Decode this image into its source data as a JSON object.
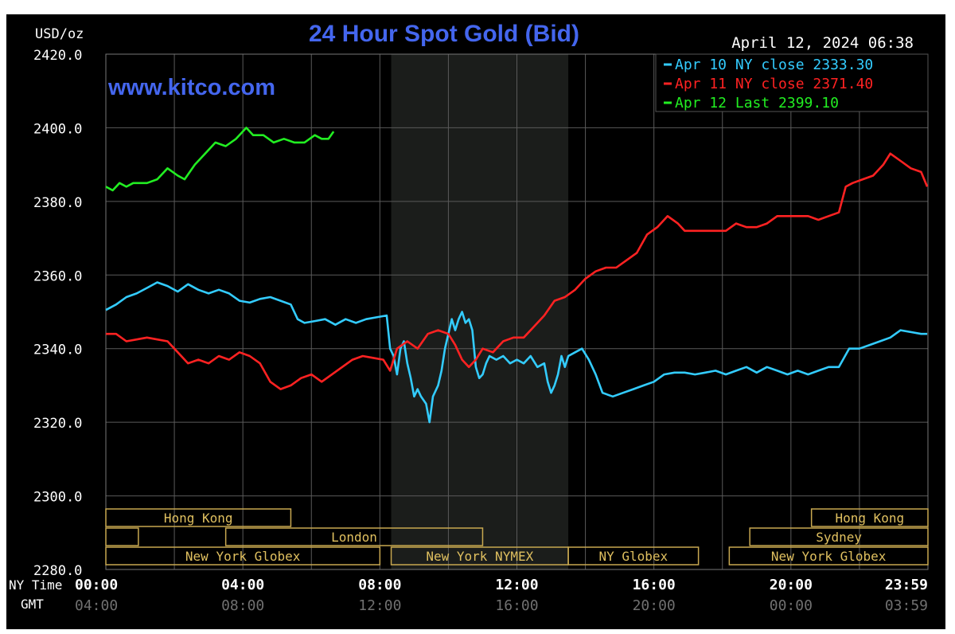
{
  "chart_data": {
    "type": "line",
    "title": "24 Hour Spot Gold (Bid)",
    "website": "www.kitco.com",
    "timestamp": "April 12, 2024 06:38",
    "unit_label": "USD/oz",
    "ylim": [
      2280,
      2420
    ],
    "y_ticks": [
      "2420.0",
      "2400.0",
      "2380.0",
      "2360.0",
      "2340.0",
      "2320.0",
      "2300.0",
      "2280.0"
    ],
    "y_tick_values": [
      2420,
      2400,
      2380,
      2360,
      2340,
      2320,
      2300,
      2280
    ],
    "xlim": [
      0,
      24
    ],
    "x_ticks_ny": [
      "00:00",
      "04:00",
      "08:00",
      "12:00",
      "16:00",
      "20:00",
      "23:59"
    ],
    "x_ticks_gmt": [
      "04:00",
      "08:00",
      "12:00",
      "16:00",
      "20:00",
      "00:00",
      "03:59"
    ],
    "x_tick_hours": [
      0,
      4,
      8,
      12,
      16,
      20,
      23.98
    ],
    "x_row_labels": {
      "ny": "NY Time",
      "gmt": "GMT"
    },
    "grid": true,
    "legend_position": "top-right",
    "legend": [
      {
        "text": "Apr 10 NY close 2333.30",
        "color": "#33ccff"
      },
      {
        "text": "Apr 11 NY close 2371.40",
        "color": "#ff2222"
      },
      {
        "text": "Apr 12 Last 2399.10",
        "color": "#22ee22"
      }
    ],
    "nymex_shade_hours": [
      8.33,
      13.5
    ],
    "sessions": [
      {
        "label": "Hong Kong",
        "start": 0,
        "end": 5.4,
        "row": 0
      },
      {
        "label": "Hong Kong",
        "start": 20.6,
        "end": 24,
        "row": 0
      },
      {
        "label": "",
        "start": 0,
        "end": 0.95,
        "row": 1
      },
      {
        "label": "London",
        "start": 3.5,
        "end": 11.0,
        "row": 1
      },
      {
        "label": "Sydney",
        "start": 18.8,
        "end": 24,
        "row": 1
      },
      {
        "label": "New York Globex",
        "start": 0,
        "end": 8.0,
        "row": 2
      },
      {
        "label": "New York NYMEX",
        "start": 8.33,
        "end": 13.5,
        "row": 2
      },
      {
        "label": "NY Globex",
        "start": 13.5,
        "end": 17.3,
        "row": 2
      },
      {
        "label": "New York Globex",
        "start": 18.2,
        "end": 24,
        "row": 2
      }
    ],
    "series": [
      {
        "name": "Apr 10 NY close 2333.30",
        "color": "#33ccff",
        "points": [
          [
            0,
            2350.5
          ],
          [
            0.3,
            2352
          ],
          [
            0.6,
            2354
          ],
          [
            0.9,
            2355
          ],
          [
            1.2,
            2356.5
          ],
          [
            1.5,
            2358
          ],
          [
            1.8,
            2357
          ],
          [
            2.1,
            2355.5
          ],
          [
            2.4,
            2357.5
          ],
          [
            2.7,
            2356
          ],
          [
            3.0,
            2355
          ],
          [
            3.3,
            2356
          ],
          [
            3.6,
            2355
          ],
          [
            3.9,
            2353
          ],
          [
            4.2,
            2352.5
          ],
          [
            4.5,
            2353.5
          ],
          [
            4.8,
            2354
          ],
          [
            5.1,
            2353
          ],
          [
            5.4,
            2352
          ],
          [
            5.6,
            2348
          ],
          [
            5.8,
            2347
          ],
          [
            6.1,
            2347.5
          ],
          [
            6.4,
            2348
          ],
          [
            6.7,
            2346.5
          ],
          [
            7.0,
            2348
          ],
          [
            7.3,
            2347
          ],
          [
            7.6,
            2348
          ],
          [
            7.9,
            2348.5
          ],
          [
            8.2,
            2349
          ],
          [
            8.3,
            2340
          ],
          [
            8.4,
            2338
          ],
          [
            8.5,
            2333
          ],
          [
            8.6,
            2340
          ],
          [
            8.7,
            2342
          ],
          [
            8.8,
            2336
          ],
          [
            8.9,
            2332
          ],
          [
            9.0,
            2327
          ],
          [
            9.1,
            2329
          ],
          [
            9.2,
            2327
          ],
          [
            9.35,
            2325
          ],
          [
            9.45,
            2320
          ],
          [
            9.55,
            2327
          ],
          [
            9.7,
            2330
          ],
          [
            9.8,
            2334
          ],
          [
            9.9,
            2340
          ],
          [
            10.0,
            2344
          ],
          [
            10.1,
            2348
          ],
          [
            10.2,
            2345
          ],
          [
            10.3,
            2348
          ],
          [
            10.4,
            2350
          ],
          [
            10.5,
            2347
          ],
          [
            10.6,
            2348
          ],
          [
            10.7,
            2345
          ],
          [
            10.8,
            2335
          ],
          [
            10.9,
            2332
          ],
          [
            11.0,
            2333
          ],
          [
            11.1,
            2336
          ],
          [
            11.2,
            2338
          ],
          [
            11.4,
            2337
          ],
          [
            11.6,
            2338
          ],
          [
            11.8,
            2336
          ],
          [
            12.0,
            2337
          ],
          [
            12.2,
            2336
          ],
          [
            12.4,
            2338
          ],
          [
            12.6,
            2335
          ],
          [
            12.8,
            2336
          ],
          [
            12.9,
            2331
          ],
          [
            13.0,
            2328
          ],
          [
            13.1,
            2330
          ],
          [
            13.2,
            2333
          ],
          [
            13.3,
            2338
          ],
          [
            13.4,
            2335
          ],
          [
            13.5,
            2338
          ],
          [
            13.7,
            2339
          ],
          [
            13.9,
            2340
          ],
          [
            14.1,
            2337
          ],
          [
            14.3,
            2333
          ],
          [
            14.5,
            2328
          ],
          [
            14.8,
            2327
          ],
          [
            15.1,
            2328
          ],
          [
            15.4,
            2329
          ],
          [
            15.7,
            2330
          ],
          [
            16.0,
            2331
          ],
          [
            16.3,
            2333
          ],
          [
            16.6,
            2333.5
          ],
          [
            16.9,
            2333.5
          ],
          [
            17.2,
            2333
          ],
          [
            17.5,
            2333.5
          ],
          [
            17.8,
            2334
          ],
          [
            18.1,
            2333
          ],
          [
            18.4,
            2334
          ],
          [
            18.7,
            2335
          ],
          [
            19.0,
            2333.5
          ],
          [
            19.3,
            2335
          ],
          [
            19.6,
            2334
          ],
          [
            19.9,
            2333
          ],
          [
            20.2,
            2334
          ],
          [
            20.5,
            2333
          ],
          [
            20.8,
            2334
          ],
          [
            21.1,
            2335
          ],
          [
            21.4,
            2335
          ],
          [
            21.7,
            2340
          ],
          [
            22.0,
            2340
          ],
          [
            22.3,
            2341
          ],
          [
            22.6,
            2342
          ],
          [
            22.9,
            2343
          ],
          [
            23.2,
            2345
          ],
          [
            23.5,
            2344.5
          ],
          [
            23.8,
            2344
          ],
          [
            23.98,
            2344
          ]
        ]
      },
      {
        "name": "Apr 11 NY close 2371.40",
        "color": "#ff2222",
        "points": [
          [
            0,
            2344
          ],
          [
            0.3,
            2344
          ],
          [
            0.6,
            2342
          ],
          [
            0.9,
            2342.5
          ],
          [
            1.2,
            2343
          ],
          [
            1.5,
            2342.5
          ],
          [
            1.8,
            2342
          ],
          [
            2.1,
            2339
          ],
          [
            2.4,
            2336
          ],
          [
            2.7,
            2337
          ],
          [
            3.0,
            2336
          ],
          [
            3.3,
            2338
          ],
          [
            3.6,
            2337
          ],
          [
            3.9,
            2339
          ],
          [
            4.2,
            2338
          ],
          [
            4.5,
            2336
          ],
          [
            4.8,
            2331
          ],
          [
            5.1,
            2329
          ],
          [
            5.4,
            2330
          ],
          [
            5.7,
            2332
          ],
          [
            6.0,
            2333
          ],
          [
            6.3,
            2331
          ],
          [
            6.6,
            2333
          ],
          [
            6.9,
            2335
          ],
          [
            7.2,
            2337
          ],
          [
            7.5,
            2338
          ],
          [
            7.8,
            2337.5
          ],
          [
            8.1,
            2337
          ],
          [
            8.3,
            2334
          ],
          [
            8.5,
            2340
          ],
          [
            8.8,
            2342
          ],
          [
            9.1,
            2340
          ],
          [
            9.4,
            2344
          ],
          [
            9.7,
            2345
          ],
          [
            10.0,
            2344
          ],
          [
            10.2,
            2341
          ],
          [
            10.4,
            2337
          ],
          [
            10.6,
            2335
          ],
          [
            10.8,
            2337
          ],
          [
            11.0,
            2340
          ],
          [
            11.3,
            2339
          ],
          [
            11.6,
            2342
          ],
          [
            11.9,
            2343
          ],
          [
            12.2,
            2343
          ],
          [
            12.5,
            2346
          ],
          [
            12.8,
            2349
          ],
          [
            13.1,
            2353
          ],
          [
            13.4,
            2354
          ],
          [
            13.7,
            2356
          ],
          [
            14.0,
            2359
          ],
          [
            14.3,
            2361
          ],
          [
            14.6,
            2362
          ],
          [
            14.9,
            2362
          ],
          [
            15.2,
            2364
          ],
          [
            15.5,
            2366
          ],
          [
            15.8,
            2371
          ],
          [
            16.1,
            2373
          ],
          [
            16.4,
            2376
          ],
          [
            16.7,
            2374
          ],
          [
            16.9,
            2372
          ],
          [
            17.2,
            2372
          ],
          [
            17.5,
            2372
          ],
          [
            17.8,
            2372
          ],
          [
            18.1,
            2372
          ],
          [
            18.4,
            2374
          ],
          [
            18.7,
            2373
          ],
          [
            19.0,
            2373
          ],
          [
            19.3,
            2374
          ],
          [
            19.6,
            2376
          ],
          [
            19.9,
            2376
          ],
          [
            20.2,
            2376
          ],
          [
            20.5,
            2376
          ],
          [
            20.8,
            2375
          ],
          [
            21.1,
            2376
          ],
          [
            21.4,
            2377
          ],
          [
            21.6,
            2384
          ],
          [
            21.8,
            2385
          ],
          [
            22.1,
            2386
          ],
          [
            22.4,
            2387
          ],
          [
            22.7,
            2390
          ],
          [
            22.9,
            2393
          ],
          [
            23.2,
            2391
          ],
          [
            23.5,
            2389
          ],
          [
            23.8,
            2388
          ],
          [
            23.98,
            2384
          ]
        ]
      },
      {
        "name": "Apr 12 Last 2399.10",
        "color": "#22ee22",
        "points": [
          [
            0,
            2384
          ],
          [
            0.2,
            2383
          ],
          [
            0.4,
            2385
          ],
          [
            0.6,
            2384
          ],
          [
            0.8,
            2385
          ],
          [
            1.0,
            2385
          ],
          [
            1.2,
            2385
          ],
          [
            1.5,
            2386
          ],
          [
            1.8,
            2389
          ],
          [
            2.1,
            2387
          ],
          [
            2.3,
            2386
          ],
          [
            2.6,
            2390
          ],
          [
            2.9,
            2393
          ],
          [
            3.2,
            2396
          ],
          [
            3.5,
            2395
          ],
          [
            3.8,
            2397
          ],
          [
            4.1,
            2400
          ],
          [
            4.3,
            2398
          ],
          [
            4.6,
            2398
          ],
          [
            4.9,
            2396
          ],
          [
            5.2,
            2397
          ],
          [
            5.5,
            2396
          ],
          [
            5.8,
            2396
          ],
          [
            6.1,
            2398
          ],
          [
            6.3,
            2397
          ],
          [
            6.5,
            2397
          ],
          [
            6.65,
            2399
          ]
        ]
      }
    ]
  }
}
